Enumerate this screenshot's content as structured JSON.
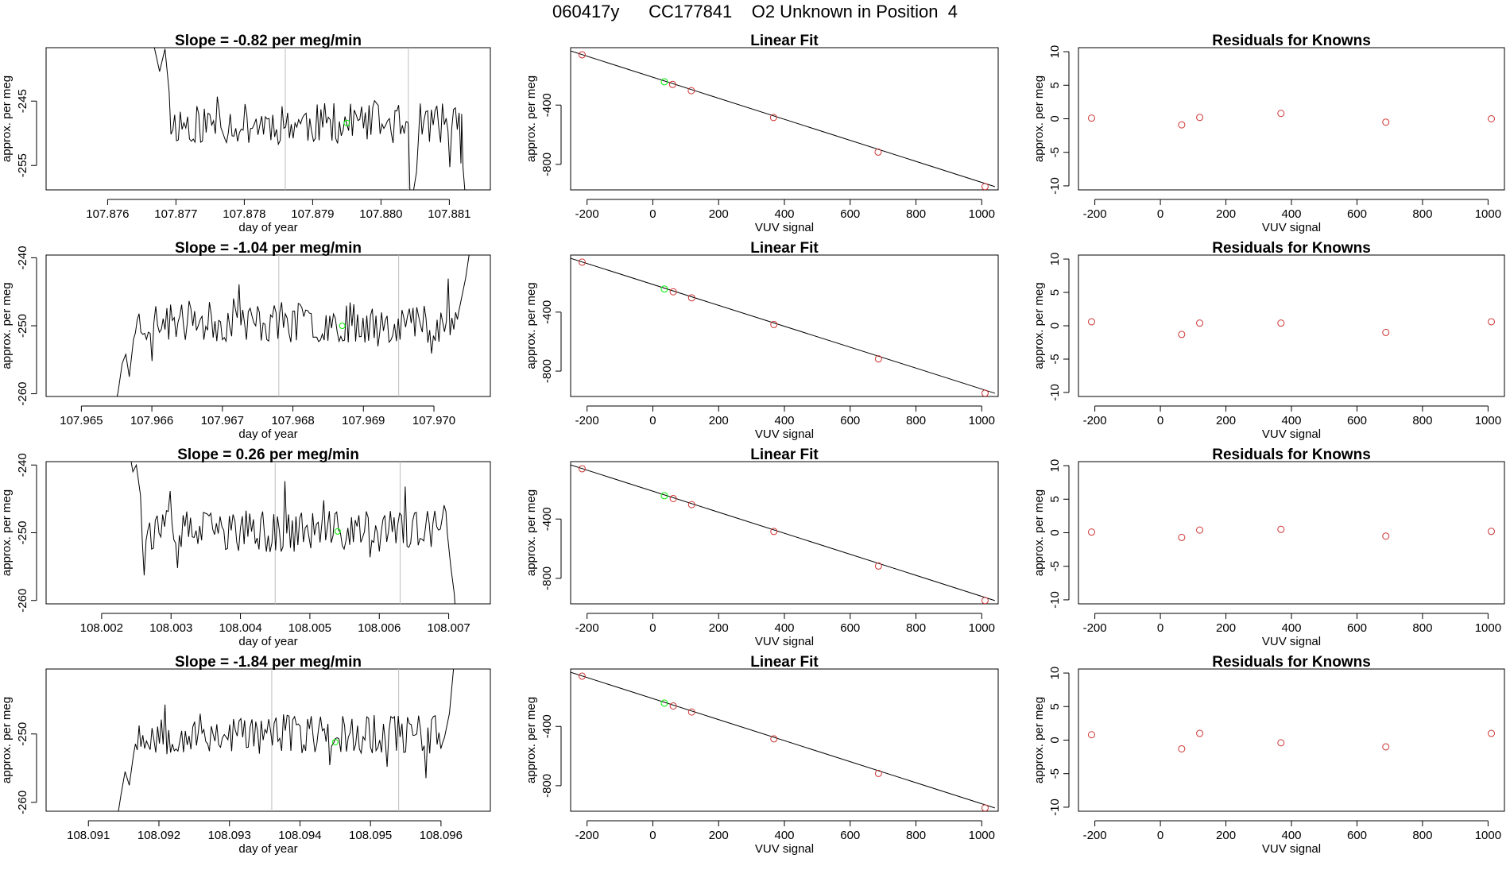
{
  "figure": {
    "title": "060417y      CC177841    O2 Unknown in Position  4"
  },
  "colors": {
    "line": "#000000",
    "gray_line": "#bebebe",
    "known_point": "#cd3333",
    "unknown_point": "#00ee00"
  },
  "chart_data": [
    {
      "type": "line",
      "row": 0,
      "col": 0,
      "title": "Slope =  -0.82  per meg/min",
      "xlabel": "day of year",
      "ylabel": "approx. per meg",
      "xlim": [
        107.8751,
        107.8816
      ],
      "ylim": [
        -258.8,
        -236.7
      ],
      "xticks": [
        107.876,
        107.877,
        107.878,
        107.879,
        107.88,
        107.881
      ],
      "xtick_labels": [
        "107.876",
        "107.877",
        "107.878",
        "107.879",
        "107.880",
        "107.881"
      ],
      "yticks": [
        -245,
        -255
      ],
      "ytick_labels": [
        "-245",
        "-255"
      ],
      "vlines": [
        107.8786,
        107.8804
      ],
      "unknown_point": {
        "x": 107.8795,
        "y": -248.4
      },
      "noise": {
        "start": 107.87667,
        "end": 107.88125,
        "base": -248.5,
        "amp": 3.2,
        "seed": 11,
        "head": [
          [
            107.87667,
            -236.0
          ],
          [
            107.87676,
            -240.4
          ],
          [
            107.87684,
            -236.9
          ],
          [
            107.8769,
            -243.5
          ]
        ],
        "tail": [
          [
            107.8804,
            -248.8
          ],
          [
            107.88043,
            -262.0
          ],
          [
            107.88052,
            -256.0
          ]
        ],
        "end_tail": [
          [
            107.88118,
            -247.0
          ],
          [
            107.8812,
            -255.3
          ],
          [
            107.88125,
            -262.0
          ]
        ]
      }
    },
    {
      "type": "scatter",
      "row": 0,
      "col": 1,
      "title": "Linear Fit",
      "xlabel": "VUV signal",
      "ylabel": "approx. per meg",
      "xlim": [
        -250,
        1050
      ],
      "ylim": [
        -972,
        -13
      ],
      "xticks": [
        -200,
        0,
        200,
        400,
        600,
        800,
        1000
      ],
      "xtick_labels": [
        "-200",
        "0",
        "200",
        "400",
        "600",
        "800",
        "1000"
      ],
      "yticks": [
        -400,
        -800
      ],
      "ytick_labels": [
        "-400",
        "-800"
      ],
      "fit_line": {
        "x": [
          -250,
          1040
        ],
        "y": [
          -35,
          -950
        ]
      },
      "knowns": [
        {
          "x": -215,
          "y": -61
        },
        {
          "x": 60,
          "y": -261
        },
        {
          "x": 117,
          "y": -303
        },
        {
          "x": 367,
          "y": -484
        },
        {
          "x": 685,
          "y": -717
        },
        {
          "x": 1010,
          "y": -950
        }
      ],
      "unknowns": [
        {
          "x": 35,
          "y": -243
        }
      ]
    },
    {
      "type": "scatter",
      "row": 0,
      "col": 2,
      "title": "Residuals for Knowns",
      "xlabel": "VUV signal",
      "ylabel": "approx. per meg",
      "xlim": [
        -250,
        1050
      ],
      "ylim": [
        -10.6,
        10.6
      ],
      "xticks": [
        -200,
        0,
        200,
        400,
        600,
        800,
        1000
      ],
      "xtick_labels": [
        "-200",
        "0",
        "200",
        "400",
        "600",
        "800",
        "1000"
      ],
      "yticks": [
        10,
        5,
        0,
        -5,
        -10
      ],
      "ytick_labels": [
        "10",
        "5",
        "0",
        "-5",
        "-10"
      ],
      "knowns": [
        {
          "x": -210,
          "y": 0.1
        },
        {
          "x": 65,
          "y": -0.9
        },
        {
          "x": 120,
          "y": 0.2
        },
        {
          "x": 368,
          "y": 0.8
        },
        {
          "x": 688,
          "y": -0.5
        },
        {
          "x": 1010,
          "y": 0.0
        }
      ]
    },
    {
      "type": "line",
      "row": 1,
      "col": 0,
      "title": "Slope =  -1.04  per meg/min",
      "xlabel": "day of year",
      "ylabel": "approx. per meg",
      "xlim": [
        107.9645,
        107.9708
      ],
      "ylim": [
        -260.4,
        -239.6
      ],
      "xticks": [
        107.965,
        107.966,
        107.967,
        107.968,
        107.969,
        107.97
      ],
      "xtick_labels": [
        "107.965",
        "107.966",
        "107.967",
        "107.968",
        "107.969",
        "107.970"
      ],
      "yticks": [
        -240,
        -250,
        -260
      ],
      "ytick_labels": [
        "-240",
        "-250",
        "-260"
      ],
      "vlines": [
        107.9678,
        107.9695
      ],
      "unknown_point": {
        "x": 107.9687,
        "y": -250.0
      },
      "noise": {
        "start": 107.96547,
        "end": 107.97055,
        "base": -249.5,
        "amp": 3.0,
        "seed": 23,
        "head": [
          [
            107.96547,
            -262.0
          ],
          [
            107.96552,
            -259.8
          ],
          [
            107.96558,
            -255.5
          ],
          [
            107.96563,
            -254.2
          ],
          [
            107.96568,
            -257.5
          ],
          [
            107.96574,
            -252.0
          ]
        ],
        "tail": [],
        "end_tail": [
          [
            107.97035,
            -248.0
          ],
          [
            107.97045,
            -243.0
          ],
          [
            107.97055,
            -236.0
          ]
        ]
      }
    },
    {
      "type": "scatter",
      "row": 1,
      "col": 1,
      "title": "Linear Fit",
      "xlabel": "VUV signal",
      "ylabel": "approx. per meg",
      "xlim": [
        -250,
        1050
      ],
      "ylim": [
        -972,
        -13
      ],
      "xticks": [
        -200,
        0,
        200,
        400,
        600,
        800,
        1000
      ],
      "xtick_labels": [
        "-200",
        "0",
        "200",
        "400",
        "600",
        "800",
        "1000"
      ],
      "yticks": [
        -400,
        -800
      ],
      "ytick_labels": [
        "-400",
        "-800"
      ],
      "fit_line": {
        "x": [
          -250,
          1040
        ],
        "y": [
          -35,
          -950
        ]
      },
      "knowns": [
        {
          "x": -215,
          "y": -61
        },
        {
          "x": 62,
          "y": -262
        },
        {
          "x": 118,
          "y": -303
        },
        {
          "x": 368,
          "y": -484
        },
        {
          "x": 686,
          "y": -717
        },
        {
          "x": 1010,
          "y": -950
        }
      ],
      "unknowns": [
        {
          "x": 35,
          "y": -243
        }
      ]
    },
    {
      "type": "scatter",
      "row": 1,
      "col": 2,
      "title": "Residuals for Knowns",
      "xlabel": "VUV signal",
      "ylabel": "approx. per meg",
      "xlim": [
        -250,
        1050
      ],
      "ylim": [
        -10.6,
        10.6
      ],
      "xticks": [
        -200,
        0,
        200,
        400,
        600,
        800,
        1000
      ],
      "xtick_labels": [
        "-200",
        "0",
        "200",
        "400",
        "600",
        "800",
        "1000"
      ],
      "yticks": [
        10,
        5,
        0,
        -5,
        -10
      ],
      "ytick_labels": [
        "10",
        "5",
        "0",
        "-5",
        "-10"
      ],
      "knowns": [
        {
          "x": -210,
          "y": 0.6
        },
        {
          "x": 65,
          "y": -1.3
        },
        {
          "x": 120,
          "y": 0.4
        },
        {
          "x": 368,
          "y": 0.4
        },
        {
          "x": 688,
          "y": -1.0
        },
        {
          "x": 1010,
          "y": 0.6
        }
      ]
    },
    {
      "type": "line",
      "row": 2,
      "col": 0,
      "title": "Slope =  0.26  per meg/min",
      "xlabel": "day of year",
      "ylabel": "approx. per meg",
      "xlim": [
        108.0012,
        108.0076
      ],
      "ylim": [
        -260.5,
        -239.5
      ],
      "xticks": [
        108.002,
        108.003,
        108.004,
        108.005,
        108.006,
        108.007
      ],
      "xtick_labels": [
        "108.002",
        "108.003",
        "108.004",
        "108.005",
        "108.006",
        "108.007"
      ],
      "yticks": [
        -240,
        -250,
        -260
      ],
      "ytick_labels": [
        "-240",
        "-250",
        "-260"
      ],
      "vlines": [
        108.0045,
        108.0063
      ],
      "unknown_point": {
        "x": 108.0054,
        "y": -249.8
      },
      "noise": {
        "start": 108.0024,
        "end": 108.0071,
        "base": -249.8,
        "amp": 3.1,
        "seed": 37,
        "head": [
          [
            108.0024,
            -238.0
          ],
          [
            108.00245,
            -241.0
          ],
          [
            108.0025,
            -240.0
          ],
          [
            108.00256,
            -244.5
          ]
        ],
        "tail": [],
        "end_tail": [
          [
            108.00698,
            -250.0
          ],
          [
            108.00703,
            -255.0
          ],
          [
            108.00708,
            -259.0
          ],
          [
            108.0071,
            -262.0
          ]
        ]
      }
    },
    {
      "type": "scatter",
      "row": 2,
      "col": 1,
      "title": "Linear Fit",
      "xlabel": "VUV signal",
      "ylabel": "approx. per meg",
      "xlim": [
        -250,
        1050
      ],
      "ylim": [
        -972,
        -13
      ],
      "xticks": [
        -200,
        0,
        200,
        400,
        600,
        800,
        1000
      ],
      "xtick_labels": [
        "-200",
        "0",
        "200",
        "400",
        "600",
        "800",
        "1000"
      ],
      "yticks": [
        -400,
        -800
      ],
      "ytick_labels": [
        "-400",
        "-800"
      ],
      "fit_line": {
        "x": [
          -250,
          1040
        ],
        "y": [
          -35,
          -950
        ]
      },
      "knowns": [
        {
          "x": -215,
          "y": -61
        },
        {
          "x": 62,
          "y": -262
        },
        {
          "x": 118,
          "y": -303
        },
        {
          "x": 368,
          "y": -484
        },
        {
          "x": 686,
          "y": -717
        },
        {
          "x": 1010,
          "y": -950
        }
      ],
      "unknowns": [
        {
          "x": 35,
          "y": -243
        }
      ]
    },
    {
      "type": "scatter",
      "row": 2,
      "col": 2,
      "title": "Residuals for Knowns",
      "xlabel": "VUV signal",
      "ylabel": "approx. per meg",
      "xlim": [
        -250,
        1050
      ],
      "ylim": [
        -10.6,
        10.6
      ],
      "xticks": [
        -200,
        0,
        200,
        400,
        600,
        800,
        1000
      ],
      "xtick_labels": [
        "-200",
        "0",
        "200",
        "400",
        "600",
        "800",
        "1000"
      ],
      "yticks": [
        10,
        5,
        0,
        -5,
        -10
      ],
      "ytick_labels": [
        "10",
        "5",
        "0",
        "-5",
        "-10"
      ],
      "knowns": [
        {
          "x": -210,
          "y": 0.1
        },
        {
          "x": 65,
          "y": -0.7
        },
        {
          "x": 120,
          "y": 0.4
        },
        {
          "x": 368,
          "y": 0.5
        },
        {
          "x": 688,
          "y": -0.5
        },
        {
          "x": 1010,
          "y": 0.2
        }
      ]
    },
    {
      "type": "line",
      "row": 3,
      "col": 0,
      "title": "Slope =  -1.84  per meg/min",
      "xlabel": "day of year",
      "ylabel": "approx. per meg",
      "xlim": [
        108.0904,
        108.0967
      ],
      "ylim": [
        -261.3,
        -240.5
      ],
      "xticks": [
        108.091,
        108.092,
        108.093,
        108.094,
        108.095,
        108.096
      ],
      "xtick_labels": [
        "108.091",
        "108.092",
        "108.093",
        "108.094",
        "108.095",
        "108.096"
      ],
      "yticks": [
        -250,
        -260
      ],
      "ytick_labels": [
        "-250",
        "-260"
      ],
      "vlines": [
        108.0936,
        108.0954
      ],
      "unknown_point": {
        "x": 108.0945,
        "y": -251.2
      },
      "noise": {
        "start": 108.0914,
        "end": 108.0962,
        "base": -250.0,
        "amp": 3.0,
        "seed": 53,
        "head": [
          [
            108.0914,
            -263.0
          ],
          [
            108.09146,
            -259.0
          ],
          [
            108.09152,
            -255.5
          ],
          [
            108.09158,
            -257.5
          ],
          [
            108.09164,
            -253.0
          ]
        ],
        "tail": [],
        "end_tail": [
          [
            108.09605,
            -250.5
          ],
          [
            108.09612,
            -247.0
          ],
          [
            108.0962,
            -238.0
          ]
        ]
      }
    },
    {
      "type": "scatter",
      "row": 3,
      "col": 1,
      "title": "Linear Fit",
      "xlabel": "VUV signal",
      "ylabel": "approx. per meg",
      "xlim": [
        -250,
        1050
      ],
      "ylim": [
        -972,
        -13
      ],
      "xticks": [
        -200,
        0,
        200,
        400,
        600,
        800,
        1000
      ],
      "xtick_labels": [
        "-200",
        "0",
        "200",
        "400",
        "600",
        "800",
        "1000"
      ],
      "yticks": [
        -400,
        -800
      ],
      "ytick_labels": [
        "-400",
        "-800"
      ],
      "fit_line": {
        "x": [
          -250,
          1040
        ],
        "y": [
          -35,
          -950
        ]
      },
      "knowns": [
        {
          "x": -215,
          "y": -61
        },
        {
          "x": 62,
          "y": -262
        },
        {
          "x": 118,
          "y": -303
        },
        {
          "x": 368,
          "y": -484
        },
        {
          "x": 686,
          "y": -717
        },
        {
          "x": 1010,
          "y": -950
        }
      ],
      "unknowns": [
        {
          "x": 35,
          "y": -243
        }
      ]
    },
    {
      "type": "scatter",
      "row": 3,
      "col": 2,
      "title": "Residuals for Knowns",
      "xlabel": "VUV signal",
      "ylabel": "approx. per meg",
      "xlim": [
        -250,
        1050
      ],
      "ylim": [
        -10.6,
        10.6
      ],
      "xticks": [
        -200,
        0,
        200,
        400,
        600,
        800,
        1000
      ],
      "xtick_labels": [
        "-200",
        "0",
        "200",
        "400",
        "600",
        "800",
        "1000"
      ],
      "yticks": [
        10,
        5,
        0,
        -5,
        -10
      ],
      "ytick_labels": [
        "10",
        "5",
        "0",
        "-5",
        "-10"
      ],
      "knowns": [
        {
          "x": -210,
          "y": 0.8
        },
        {
          "x": 65,
          "y": -1.3
        },
        {
          "x": 120,
          "y": 1.0
        },
        {
          "x": 368,
          "y": -0.4
        },
        {
          "x": 688,
          "y": -1.0
        },
        {
          "x": 1010,
          "y": 1.0
        }
      ]
    }
  ]
}
